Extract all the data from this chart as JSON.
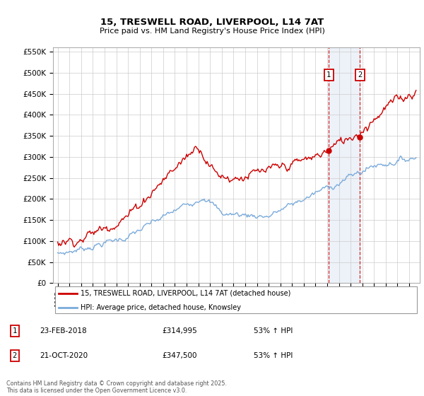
{
  "title1": "15, TRESWELL ROAD, LIVERPOOL, L14 7AT",
  "title2": "Price paid vs. HM Land Registry's House Price Index (HPI)",
  "ylim": [
    0,
    560000
  ],
  "yticks": [
    0,
    50000,
    100000,
    150000,
    200000,
    250000,
    300000,
    350000,
    400000,
    450000,
    500000,
    550000
  ],
  "ytick_labels": [
    "£0",
    "£50K",
    "£100K",
    "£150K",
    "£200K",
    "£250K",
    "£300K",
    "£350K",
    "£400K",
    "£450K",
    "£500K",
    "£550K"
  ],
  "legend1": "15, TRESWELL ROAD, LIVERPOOL, L14 7AT (detached house)",
  "legend2": "HPI: Average price, detached house, Knowsley",
  "sale1_date": "23-FEB-2018",
  "sale1_price": "£314,995",
  "sale1_pct": "53% ↑ HPI",
  "sale2_date": "21-OCT-2020",
  "sale2_price": "£347,500",
  "sale2_pct": "53% ↑ HPI",
  "footnote": "Contains HM Land Registry data © Crown copyright and database right 2025.\nThis data is licensed under the Open Government Licence v3.0.",
  "red_color": "#cc0000",
  "blue_color": "#7aabdb",
  "sale_line_color": "#cc0000",
  "sale_box_color": "#cc0000",
  "bg_shade_color": "#ccdcef",
  "grid_color": "#cccccc",
  "sale1_year": 2018.14,
  "sale2_year": 2020.8,
  "sale1_value": 314995,
  "sale2_value": 347500
}
